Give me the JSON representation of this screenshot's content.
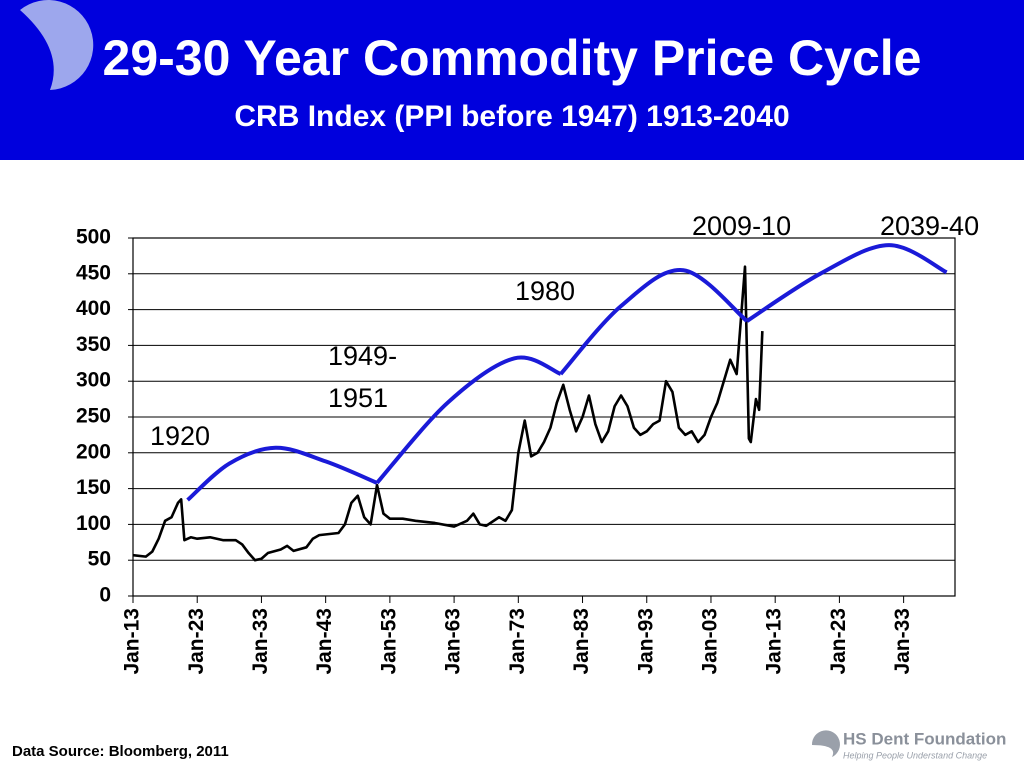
{
  "chart_data": {
    "type": "line",
    "title": "29-30 Year Commodity Price Cycle",
    "subtitle": "CRB Index (PPI before 1947) 1913-2040",
    "source": "Data Source: Bloomberg, 2011",
    "logo": {
      "name": "HS Dent Foundation",
      "tagline": "Helping People Understand Change"
    },
    "annotations": [
      "1920",
      [
        "1949-",
        "1951"
      ],
      "1980",
      "2009-10",
      "2039-40"
    ],
    "xlim": [
      1913,
      2041
    ],
    "xticks": [
      {
        "value": 1913,
        "label": "Jan-13"
      },
      {
        "value": 1923,
        "label": "Jan-23"
      },
      {
        "value": 1933,
        "label": "Jan-33"
      },
      {
        "value": 1943,
        "label": "Jan-43"
      },
      {
        "value": 1953,
        "label": "Jan-53"
      },
      {
        "value": 1963,
        "label": "Jan-63"
      },
      {
        "value": 1973,
        "label": "Jan-73"
      },
      {
        "value": 1983,
        "label": "Jan-83"
      },
      {
        "value": 1993,
        "label": "Jan-93"
      },
      {
        "value": 2003,
        "label": "Jan-03"
      },
      {
        "value": 2013,
        "label": "Jan-13"
      },
      {
        "value": 2023,
        "label": "Jan-23"
      },
      {
        "value": 2033,
        "label": "Jan-33"
      }
    ],
    "ylim": [
      0,
      500
    ],
    "yticks": [
      0,
      50,
      100,
      150,
      200,
      250,
      300,
      350,
      400,
      450,
      500
    ],
    "grid": true,
    "series": [
      {
        "color": "#000000",
        "smooth": false,
        "x": [
          1913,
          1915,
          1916,
          1917,
          1918,
          1919,
          1920,
          1920.5,
          1921,
          1922,
          1923,
          1925,
          1927,
          1929,
          1930,
          1931,
          1932,
          1933,
          1934,
          1936,
          1937,
          1938,
          1940,
          1941,
          1942,
          1945,
          1946,
          1947,
          1948,
          1949,
          1950,
          1951,
          1952,
          1953,
          1955,
          1957,
          1960,
          1963,
          1965,
          1966,
          1967,
          1968,
          1970,
          1971,
          1972,
          1973,
          1974,
          1975,
          1976,
          1977,
          1978,
          1979,
          1980,
          1981,
          1982,
          1983,
          1984,
          1985,
          1986,
          1987,
          1988,
          1989,
          1990,
          1991,
          1992,
          1993,
          1994,
          1995,
          1996,
          1997,
          1998,
          1999,
          2000,
          2001,
          2002,
          2003,
          2004,
          2005,
          2006,
          2007,
          2008.3,
          2008.9,
          2009.2,
          2010,
          2010.5,
          2011
        ],
        "values": [
          57,
          55,
          62,
          80,
          105,
          110,
          130,
          135,
          78,
          82,
          80,
          82,
          78,
          78,
          72,
          60,
          50,
          52,
          60,
          65,
          70,
          63,
          68,
          80,
          85,
          88,
          100,
          130,
          140,
          110,
          100,
          155,
          115,
          108,
          108,
          105,
          102,
          97,
          105,
          115,
          100,
          98,
          110,
          105,
          120,
          200,
          245,
          195,
          200,
          215,
          235,
          270,
          295,
          260,
          230,
          250,
          280,
          240,
          215,
          230,
          265,
          280,
          265,
          235,
          225,
          230,
          240,
          245,
          300,
          285,
          235,
          225,
          230,
          215,
          225,
          250,
          270,
          300,
          330,
          310,
          460,
          220,
          215,
          275,
          260,
          370
        ]
      },
      {
        "color": "#1a1ad8",
        "smooth": true,
        "x": [
          1921.5,
          1928,
          1935.2,
          1943,
          1951,
          null,
          1951,
          1962,
          1972.4,
          1979.6,
          null,
          1979.6,
          1989,
          1998.7,
          2008.6,
          null,
          2008.6,
          2020,
          2030.7,
          2039.7
        ],
        "values": [
          134,
          185,
          207,
          188,
          158,
          null,
          158,
          270,
          332,
          310,
          null,
          310,
          405,
          455,
          384,
          null,
          384,
          450,
          490,
          452
        ]
      }
    ]
  }
}
